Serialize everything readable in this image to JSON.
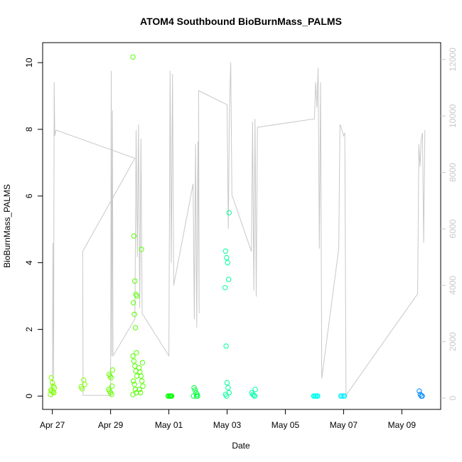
{
  "chart_data": {
    "type": "scatter",
    "title": "ATOM4 Southbound BioBurnMass_PALMS",
    "xlabel": "Date",
    "ylabel": "BioBurnMass_PALMS",
    "x_ticks": [
      "Apr 27",
      "Apr 29",
      "May 01",
      "May 03",
      "May 05",
      "May 07",
      "May 09"
    ],
    "y_ticks": [
      "0",
      "2",
      "4",
      "6",
      "8",
      "10"
    ],
    "y2_ticks": [
      "0",
      "2000",
      "4000",
      "6000",
      "8000",
      "10000",
      "12000"
    ],
    "xlim": [
      "2018-04-26T16:00",
      "2018-05-10T08:00"
    ],
    "ylim": [
      -0.4,
      10.6
    ],
    "y2lim": [
      -400,
      12600
    ],
    "grid": false,
    "point_series": [
      {
        "x": "2018-04-27T00:00",
        "color": "#7fff00",
        "values": [
          0.05,
          0.1,
          0.12,
          0.15,
          0.18,
          0.25,
          0.3,
          0.4,
          0.55
        ]
      },
      {
        "x": "2018-04-28T01:00",
        "color": "#7fff00",
        "values": [
          0.22,
          0.28,
          0.35,
          0.48
        ]
      },
      {
        "x": "2018-04-29T00:00",
        "color": "#66ff00",
        "values": [
          0.05,
          0.1,
          0.15,
          0.2,
          0.3,
          0.55,
          0.6,
          0.65,
          0.78
        ]
      },
      {
        "x": "2018-04-29T20:00",
        "color": "#55ff00",
        "values": [
          0.05,
          0.1,
          0.2,
          0.35,
          0.45,
          0.6,
          0.75,
          0.9,
          1.05,
          1.2,
          1.3,
          2.05,
          2.45,
          2.8,
          3.0,
          3.05,
          3.45,
          4.8,
          10.17
        ]
      },
      {
        "x": "2018-04-30T01:00",
        "color": "#55ff00",
        "values": [
          0.1,
          0.2,
          0.3,
          0.45,
          0.6,
          0.72,
          0.85,
          1.0,
          4.4
        ]
      },
      {
        "x": "2018-05-01T01:00",
        "color": "#00ff00",
        "values": [
          0.0,
          0.0,
          0.0,
          0.0,
          0.0,
          0.0
        ]
      },
      {
        "x": "2018-05-01T22:00",
        "color": "#00ff40",
        "values": [
          0.0,
          0.05,
          0.1,
          0.18,
          0.25,
          0.0,
          0.0
        ]
      },
      {
        "x": "2018-05-03T00:00",
        "color": "#00ff99",
        "values": [
          0.0,
          0.05,
          0.1,
          0.25,
          0.4,
          1.5,
          3.25,
          3.5,
          4.0,
          4.15,
          4.35,
          5.5
        ]
      },
      {
        "x": "2018-05-03T22:00",
        "color": "#00ffaa",
        "values": [
          0.0,
          0.02,
          0.05,
          0.1,
          0.2
        ]
      },
      {
        "x": "2018-05-06T01:00",
        "color": "#00ffee",
        "values": [
          0.0,
          0.0,
          0.0,
          0.0,
          0.0,
          0.0
        ]
      },
      {
        "x": "2018-05-06T23:00",
        "color": "#00eeff",
        "values": [
          0.0,
          0.0,
          0.0,
          0.0
        ]
      },
      {
        "x": "2018-05-09T16:00",
        "color": "#0088ff",
        "values": [
          0.0,
          0.0,
          0.05,
          0.15
        ]
      }
    ],
    "line_series": {
      "color": "#c8c8c8",
      "axis": "right",
      "points": [
        [
          "2018-04-27T00:00",
          20
        ],
        [
          "2018-04-27T00:30",
          5500
        ],
        [
          "2018-04-27T01:00",
          800
        ],
        [
          "2018-04-27T01:30",
          11200
        ],
        [
          "2018-04-27T02:00",
          9300
        ],
        [
          "2018-04-27T03:00",
          9500
        ],
        [
          "2018-04-29T20:00",
          8500
        ],
        [
          "2018-04-28T01:00",
          5200
        ],
        [
          "2018-04-28T01:20",
          100
        ],
        [
          "2018-04-29T00:00",
          100
        ],
        [
          "2018-04-29T00:30",
          11600
        ],
        [
          "2018-04-29T01:00",
          1500
        ],
        [
          "2018-04-29T01:30",
          10200
        ],
        [
          "2018-04-29T02:00",
          1500
        ],
        [
          "2018-04-29T20:00",
          2800
        ],
        [
          "2018-04-29T21:00",
          9500
        ],
        [
          "2018-04-29T22:00",
          5000
        ],
        [
          "2018-04-29T23:00",
          9700
        ],
        [
          "2018-04-30T00:00",
          3200
        ],
        [
          "2018-04-30T01:00",
          9200
        ],
        [
          "2018-04-30T02:00",
          3000
        ],
        [
          "2018-05-01T00:00",
          1500
        ],
        [
          "2018-05-01T01:00",
          11600
        ],
        [
          "2018-05-01T02:00",
          4800
        ],
        [
          "2018-05-01T03:00",
          11500
        ],
        [
          "2018-05-01T04:00",
          4000
        ],
        [
          "2018-05-01T20:00",
          7600
        ],
        [
          "2018-05-01T21:00",
          2800
        ],
        [
          "2018-05-01T22:00",
          9000
        ],
        [
          "2018-05-01T23:00",
          2500
        ],
        [
          "2018-05-02T00:00",
          9100
        ],
        [
          "2018-05-02T01:00",
          3000
        ],
        [
          "2018-05-02T00:30",
          10900
        ],
        [
          "2018-05-03T00:00",
          10400
        ],
        [
          "2018-05-03T01:00",
          6000
        ],
        [
          "2018-05-03T02:00",
          10300
        ],
        [
          "2018-05-03T03:00",
          11900
        ],
        [
          "2018-05-03T04:00",
          7200
        ],
        [
          "2018-05-03T20:00",
          5200
        ],
        [
          "2018-05-03T21:00",
          9800
        ],
        [
          "2018-05-03T22:00",
          3800
        ],
        [
          "2018-05-03T23:00",
          9900
        ],
        [
          "2018-05-04T00:00",
          3600
        ],
        [
          "2018-05-04T01:00",
          9600
        ],
        [
          "2018-05-06T00:00",
          9900
        ],
        [
          "2018-05-06T01:00",
          11200
        ],
        [
          "2018-05-06T02:00",
          10300
        ],
        [
          "2018-05-06T03:00",
          11700
        ],
        [
          "2018-05-06T04:00",
          5300
        ],
        [
          "2018-05-06T05:00",
          11200
        ],
        [
          "2018-05-06T06:00",
          700
        ],
        [
          "2018-05-06T20:00",
          5300
        ],
        [
          "2018-05-06T21:00",
          9700
        ],
        [
          "2018-05-06T22:00",
          9600
        ],
        [
          "2018-05-07T00:00",
          9300
        ],
        [
          "2018-05-07T01:00",
          9400
        ],
        [
          "2018-05-07T02:00",
          100
        ],
        [
          "2018-05-09T13:00",
          3700
        ],
        [
          "2018-05-09T14:00",
          9000
        ],
        [
          "2018-05-09T15:00",
          8200
        ],
        [
          "2018-05-09T16:00",
          9200
        ],
        [
          "2018-05-09T17:00",
          9400
        ],
        [
          "2018-05-09T18:00",
          5500
        ],
        [
          "2018-05-09T19:00",
          9500
        ]
      ]
    }
  }
}
